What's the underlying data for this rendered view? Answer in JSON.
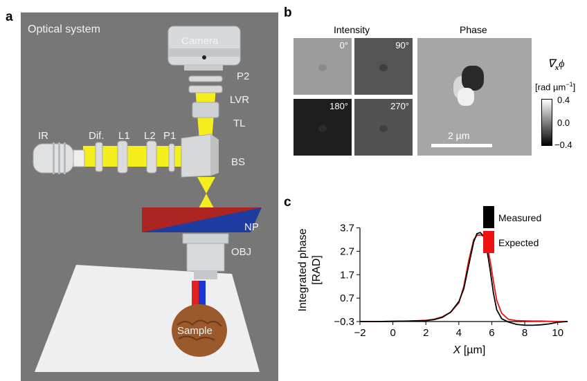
{
  "panel_a": {
    "letter": "a",
    "title": "Optical system",
    "labels": {
      "camera": "Camera",
      "p2": "P2",
      "lvr": "LVR",
      "tl": "TL",
      "ir": "IR",
      "dif": "Dif.",
      "l1": "L1",
      "l2": "L2",
      "p1": "P1",
      "bs": "BS",
      "np": "NP",
      "obj": "OBJ",
      "sample": "Sample"
    },
    "colors": {
      "background": "#777777",
      "beam": "#f4ef1c",
      "np_red": "#b82418",
      "np_blue": "#1f3ca0",
      "sample": "#9a5a2c"
    }
  },
  "panel_b": {
    "letter": "b",
    "intensity_title": "Intensity",
    "phase_title": "Phase",
    "angles": [
      "0°",
      "90°",
      "180°",
      "270°"
    ],
    "colorbar_label_top": "∇",
    "colorbar_label_sub": "x",
    "colorbar_label_phi": "ϕ",
    "colorbar_unit": "[rad µm",
    "colorbar_unit_exp": "−1",
    "colorbar_unit_end": "]",
    "colorbar_ticks": [
      "0.4",
      "0.0",
      "−0.4"
    ],
    "scalebar_label": "2 µm"
  },
  "panel_c": {
    "letter": "c"
  },
  "chart_data": {
    "type": "line",
    "ylabel": "Integrated phase [RAD]",
    "xlabel_var": "X",
    "xlabel_unit": " [µm]",
    "xlim": [
      -2,
      10.6
    ],
    "ylim": [
      -0.3,
      4.1
    ],
    "x_ticks": [
      "−2",
      "0",
      "2",
      "4",
      "6",
      "8",
      "10"
    ],
    "x_tick_values": [
      -2,
      0,
      2,
      4,
      6,
      8,
      10
    ],
    "y_ticks": [
      "3.7",
      "2.7",
      "1.7",
      "0.7",
      "−0.3"
    ],
    "y_tick_values": [
      3.7,
      2.7,
      1.7,
      0.7,
      -0.3
    ],
    "legend_position": "top-right",
    "series": [
      {
        "name": "Measured",
        "color": "#000000",
        "x": [
          -2,
          -1,
          0,
          1,
          2,
          2.5,
          3,
          3.5,
          4,
          4.3,
          4.6,
          4.9,
          5.1,
          5.3,
          5.5,
          5.7,
          5.9,
          6.1,
          6.3,
          6.6,
          7,
          7.5,
          8,
          8.5,
          9,
          9.5,
          10,
          10.6
        ],
        "y": [
          -0.3,
          -0.3,
          -0.29,
          -0.28,
          -0.26,
          -0.22,
          -0.12,
          0.1,
          0.55,
          1.1,
          2.1,
          3.1,
          3.45,
          3.5,
          3.35,
          2.8,
          1.9,
          0.9,
          0.2,
          -0.18,
          -0.32,
          -0.42,
          -0.46,
          -0.46,
          -0.44,
          -0.4,
          -0.33,
          -0.3
        ]
      },
      {
        "name": "Expected",
        "color": "#ee1111",
        "x": [
          -2,
          -1,
          0,
          1,
          2,
          2.5,
          3,
          3.5,
          4,
          4.3,
          4.6,
          4.9,
          5.1,
          5.3,
          5.5,
          5.7,
          5.9,
          6.1,
          6.3,
          6.6,
          7,
          7.5,
          8,
          8.5,
          9,
          9.5,
          10,
          10.6
        ],
        "y": [
          -0.3,
          -0.3,
          -0.29,
          -0.28,
          -0.25,
          -0.2,
          -0.1,
          0.1,
          0.5,
          1.2,
          2.3,
          3.2,
          3.38,
          3.4,
          3.35,
          3.0,
          2.3,
          1.4,
          0.6,
          0.05,
          -0.2,
          -0.26,
          -0.27,
          -0.28,
          -0.28,
          -0.29,
          -0.3,
          -0.3
        ]
      }
    ]
  }
}
